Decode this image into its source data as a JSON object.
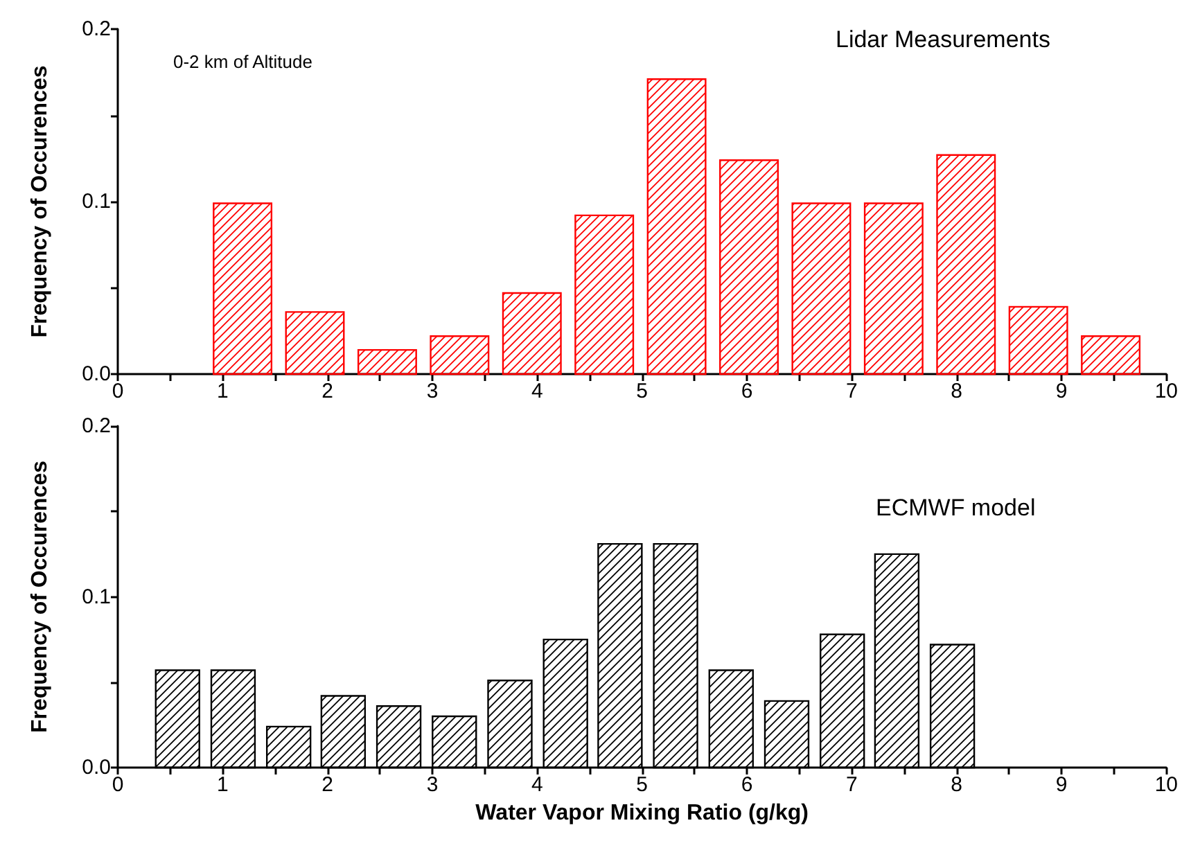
{
  "chart_data": [
    {
      "type": "bar",
      "ylabel": "Frequency of Occurences",
      "annotations": [
        "0-2 km of Altitude",
        "Lidar Measurements"
      ],
      "x": [
        1.19,
        1.88,
        2.57,
        3.26,
        3.95,
        4.64,
        5.33,
        6.02,
        6.71,
        7.4,
        8.09,
        8.78,
        9.47
      ],
      "values": [
        0.099,
        0.036,
        0.014,
        0.022,
        0.047,
        0.092,
        0.171,
        0.124,
        0.099,
        0.099,
        0.127,
        0.039,
        0.022
      ],
      "color": "#ff0000",
      "xlim": [
        0,
        10
      ],
      "xticks": [
        0,
        {
          "value": 0.5,
          "label": null
        },
        1,
        {
          "value": 1.5,
          "label": null
        },
        2,
        {
          "value": 2.5,
          "label": null
        },
        3,
        {
          "value": 3.5,
          "label": null
        },
        4,
        {
          "value": 4.5,
          "label": null
        },
        5,
        {
          "value": 5.5,
          "label": null
        },
        6,
        {
          "value": 6.5,
          "label": null
        },
        7,
        {
          "value": 7.5,
          "label": null
        },
        8,
        {
          "value": 8.5,
          "label": null
        },
        9,
        {
          "value": 9.5,
          "label": null
        },
        10
      ],
      "ylim": [
        0,
        0.2
      ],
      "yticks": [
        {
          "value": 0,
          "label": "0.0"
        },
        {
          "value": 0.05,
          "label": null
        },
        {
          "value": 0.1,
          "label": "0.1"
        },
        {
          "value": 0.15,
          "label": null
        },
        {
          "value": 0.2,
          "label": "0.2"
        }
      ]
    },
    {
      "type": "bar",
      "xlabel": "Water Vapor Mixing Ratio (g/kg)",
      "ylabel": "Frequency of Occurences",
      "annotations": [
        "ECMWF model"
      ],
      "x": [
        0.57,
        1.1,
        1.63,
        2.15,
        2.68,
        3.21,
        3.74,
        4.27,
        4.79,
        5.32,
        5.85,
        6.38,
        6.91,
        7.43,
        7.96
      ],
      "values": [
        0.057,
        0.057,
        0.024,
        0.042,
        0.036,
        0.03,
        0.051,
        0.075,
        0.131,
        0.131,
        0.057,
        0.039,
        0.078,
        0.125,
        0.072
      ],
      "color": "#000000",
      "xlim": [
        0,
        10
      ],
      "xticks": [
        0,
        {
          "value": 0.5,
          "label": null
        },
        1,
        {
          "value": 1.5,
          "label": null
        },
        2,
        {
          "value": 2.5,
          "label": null
        },
        3,
        {
          "value": 3.5,
          "label": null
        },
        4,
        {
          "value": 4.5,
          "label": null
        },
        5,
        {
          "value": 5.5,
          "label": null
        },
        6,
        {
          "value": 6.5,
          "label": null
        },
        7,
        {
          "value": 7.5,
          "label": null
        },
        8,
        {
          "value": 8.5,
          "label": null
        },
        9,
        {
          "value": 9.5,
          "label": null
        },
        10
      ],
      "ylim": [
        0,
        0.2
      ],
      "yticks": [
        {
          "value": 0,
          "label": "0.0"
        },
        {
          "value": 0.05,
          "label": null
        },
        {
          "value": 0.1,
          "label": "0.1"
        },
        {
          "value": 0.15,
          "label": null
        },
        {
          "value": 0.2,
          "label": "0.2"
        }
      ]
    }
  ]
}
